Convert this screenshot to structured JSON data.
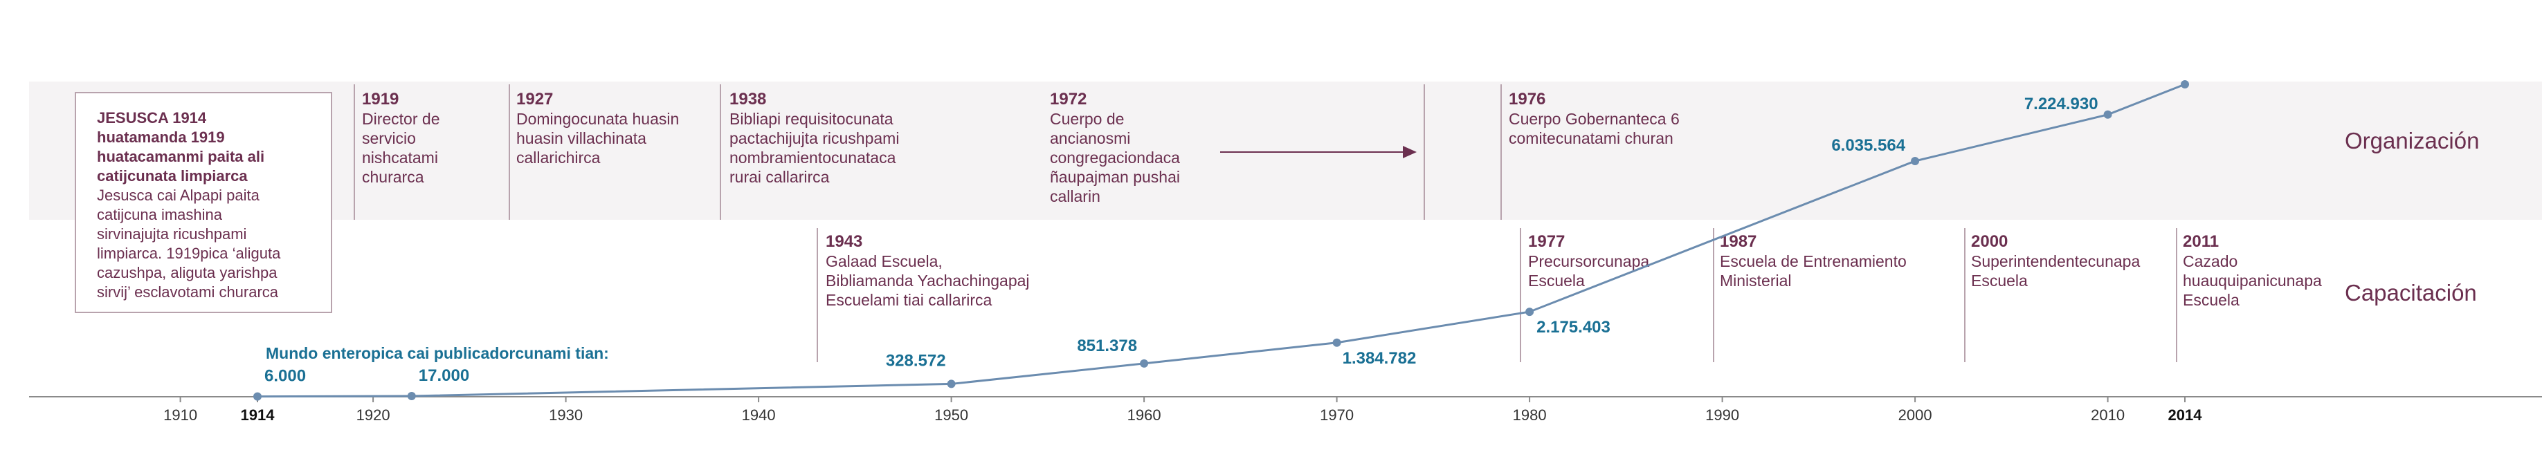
{
  "rows": {
    "org": "Organización",
    "training": "Capacitación"
  },
  "intro": {
    "title": "JESUSCA 1914\nhuatamanda 1919\nhuatacamanmi paita ali\ncatijcunata limpiarca",
    "body": "Jesusca cai Alpapi paita\ncatijcuna imashina\nsirvinajujta ricushpami\nlimpiarca. 1919pica ‘aliguta\ncazushpa, aliguta yarishpa\nsirvij’ esclavotami churarca"
  },
  "org_events": [
    {
      "year": "1919",
      "text": "Director de\nservicio\nnishcatami\nchurarca"
    },
    {
      "year": "1927",
      "text": "Domingocunata huasin\nhuasin villachinata\ncallarichirca"
    },
    {
      "year": "1938",
      "text": "Bibliapi requisitocunata\npactachijujta ricushpami\nnombramientocunataca\nrurai callarirca"
    },
    {
      "year": "1972",
      "text": "Cuerpo de\nancianosmi\ncongregaciondaca\nñaupajman pushai\ncallarin"
    },
    {
      "year": "1976",
      "text": "Cuerpo Gobernanteca 6\ncomitecunatami churan"
    }
  ],
  "training_events": [
    {
      "year": "1943",
      "text": "Galaad Escuela,\nBibliamanda Yachachingapaj\nEscuelami tiai callarirca"
    },
    {
      "year": "1977",
      "text": "Precursorcunapa\nEscuela"
    },
    {
      "year": "1987",
      "text": "Escuela de Entrenamiento\nMinisterial"
    },
    {
      "year": "2000",
      "text": "Superintendentecunapa\nEscuela"
    },
    {
      "year": "2011",
      "text": "Cazado\nhuauquipanicunapa\nEscuela"
    }
  ],
  "colors": {
    "line": "#6b8caf",
    "label": "#1a7094",
    "accent": "#6b2f4f"
  },
  "chart_data": {
    "type": "line",
    "title": "Mundo enteropica cai publicadorcunami tian:",
    "xlim": [
      1900,
      2030
    ],
    "x_ticks": [
      "1910",
      "1914",
      "1920",
      "1930",
      "1940",
      "1950",
      "1960",
      "1970",
      "1980",
      "1990",
      "2000",
      "2010",
      "2014"
    ],
    "bold_ticks": [
      "1914",
      "2014"
    ],
    "series": [
      {
        "name": "Publicadorcuna",
        "x": [
          1914,
          1922,
          1950,
          1960,
          1970,
          1980,
          2000,
          2010,
          2014
        ],
        "y": [
          6000,
          17000,
          328572,
          851378,
          1384782,
          2175403,
          6035564,
          7224930,
          8000000
        ],
        "labels": [
          "6.000",
          "17.000",
          "328.572",
          "851.378",
          "1.384.782",
          "2.175.403",
          "6.035.564",
          "7.224.930",
          ""
        ]
      }
    ]
  }
}
